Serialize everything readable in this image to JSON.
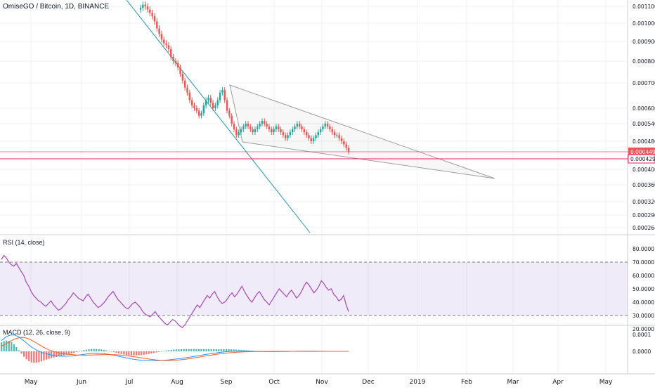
{
  "chart_data": [
    {
      "type": "candlestick",
      "title": "OmiseGO / Bitcoin, 1D, BINANCE",
      "x_axis_labels": [
        "May",
        "Jun",
        "Jul",
        "Aug",
        "Sep",
        "Oct",
        "Nov",
        "Dec",
        "2019",
        "Feb",
        "Mar",
        "Apr",
        "May"
      ],
      "y_axis_ticks": [
        "0.001100",
        "0.001000",
        "0.000900",
        "0.000800",
        "0.000700",
        "0.000600",
        "0.000540",
        "0.000480",
        "0.000400",
        "0.000360",
        "0.000320",
        "0.000290",
        "0.000264"
      ],
      "y_scale": "log",
      "price_labels": {
        "last": "0.000449",
        "level": "0.000429"
      },
      "colors": {
        "up": "#26a69a",
        "down": "#ef5350",
        "line": "#e91e63",
        "channel": "#9e9e9e",
        "trend": "#2196a3"
      },
      "close_series": {
        "x_start": "Jul 1",
        "x_end": "Nov 17",
        "values": [
          0.00109,
          0.00111,
          0.0011,
          0.00108,
          0.00106,
          0.00104,
          0.00101,
          0.00097,
          0.00094,
          0.00091,
          0.00089,
          0.00088,
          0.00086,
          0.00082,
          0.0008,
          0.00079,
          0.00077,
          0.00074,
          0.00071,
          0.00068,
          0.00066,
          0.00063,
          0.00061,
          0.0006,
          0.00059,
          0.00057,
          0.00058,
          0.00061,
          0.00063,
          0.00064,
          0.00062,
          0.0006,
          0.00061,
          0.00063,
          0.00066,
          0.00067,
          0.00063,
          0.00059,
          0.00057,
          0.00054,
          0.00052,
          0.0005,
          0.00051,
          0.00052,
          0.00053,
          0.00054,
          0.00053,
          0.00052,
          0.00051,
          0.00052,
          0.00053,
          0.00054,
          0.00055,
          0.00054,
          0.00053,
          0.00052,
          0.00051,
          0.00052,
          0.00053,
          0.00052,
          0.00051,
          0.0005,
          0.00049,
          0.0005,
          0.00051,
          0.00052,
          0.00053,
          0.00054,
          0.00053,
          0.00052,
          0.00051,
          0.0005,
          0.00049,
          0.00048,
          0.00049,
          0.0005,
          0.00051,
          0.00052,
          0.00053,
          0.00054,
          0.00053,
          0.00052,
          0.00051,
          0.0005,
          0.0005,
          0.00049,
          0.00048,
          0.00047,
          0.00046,
          0.000449
        ]
      }
    },
    {
      "type": "line",
      "title": "RSI (14, close)",
      "y_axis_ticks": [
        "80.0000",
        "70.0000",
        "60.0000",
        "50.0000",
        "40.0000",
        "30.0000",
        "20.0000"
      ],
      "reference_lines": [
        70,
        30
      ],
      "color": "#ab47bc",
      "band_color": "#7e57c2",
      "values": [
        72,
        75,
        73,
        70,
        68,
        67,
        69,
        66,
        63,
        60,
        55,
        52,
        48,
        45,
        43,
        41,
        40,
        38,
        37,
        39,
        41,
        38,
        36,
        34,
        35,
        37,
        39,
        42,
        44,
        47,
        45,
        43,
        42,
        41,
        44,
        46,
        43,
        40,
        38,
        36,
        37,
        39,
        41,
        44,
        46,
        48,
        45,
        42,
        40,
        38,
        36,
        35,
        37,
        39,
        40,
        38,
        36,
        33,
        31,
        30,
        29,
        31,
        33,
        30,
        28,
        26,
        24,
        23,
        25,
        27,
        26,
        24,
        22,
        21,
        23,
        26,
        29,
        32,
        35,
        38,
        36,
        39,
        42,
        45,
        43,
        46,
        48,
        44,
        41,
        39,
        40,
        42,
        45,
        47,
        44,
        46,
        49,
        52,
        48,
        45,
        42,
        40,
        43,
        46,
        48,
        45,
        42,
        40,
        38,
        41,
        44,
        47,
        50,
        48,
        46,
        44,
        47,
        49,
        46,
        43,
        45,
        48,
        52,
        55,
        53,
        50,
        47,
        49,
        52,
        56,
        54,
        51,
        49,
        50,
        46,
        44,
        41,
        42,
        45,
        38,
        33
      ]
    },
    {
      "type": "histogram_line",
      "title": "MACD (12, 26, close, 9)",
      "y_axis_ticks": [
        "0.0001",
        "0.0000"
      ],
      "colors": {
        "macd": "#2196f3",
        "signal": "#ff5722",
        "hist_up": "#26a69a",
        "hist_down": "#ef5350"
      }
    }
  ]
}
